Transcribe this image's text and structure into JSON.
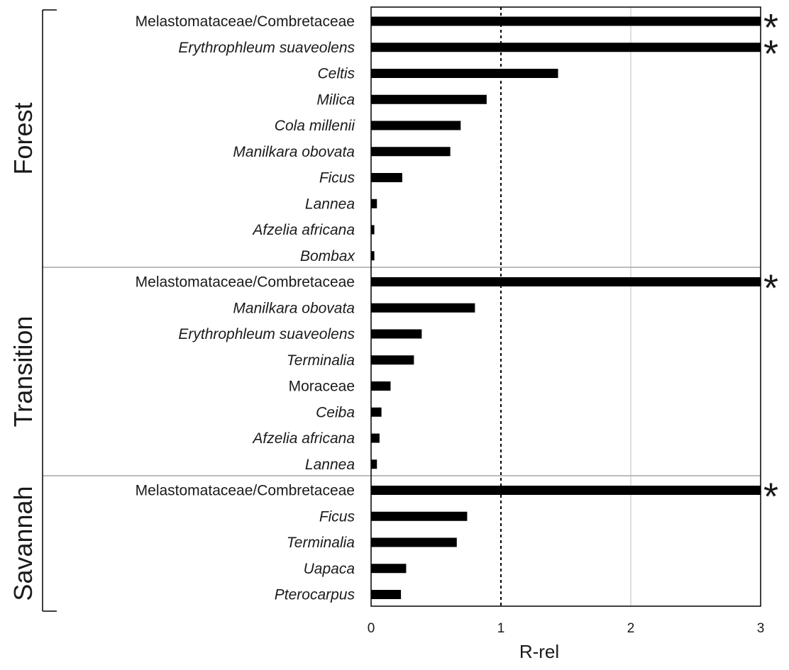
{
  "chart_data": {
    "type": "bar",
    "orientation": "horizontal",
    "xlabel": "R-rel",
    "xlim": [
      0,
      3
    ],
    "xticks": [
      0,
      1,
      2,
      3
    ],
    "reference_line": {
      "x": 1,
      "style": "dashed"
    },
    "grid": {
      "vertical": true,
      "horizontal": false
    },
    "significance_marker": "*",
    "groups": [
      {
        "name": "Forest",
        "items": [
          {
            "label": "Melastomataceae/Combretaceae",
            "italic": false,
            "value": 3.0,
            "significant": true
          },
          {
            "label": "Erythrophleum suaveolens",
            "italic": true,
            "value": 3.0,
            "significant": true
          },
          {
            "label": "Celtis",
            "italic": true,
            "value": 1.44,
            "significant": false
          },
          {
            "label": "Milica",
            "italic": true,
            "value": 0.89,
            "significant": false
          },
          {
            "label": "Cola millenii",
            "italic": true,
            "value": 0.69,
            "significant": false
          },
          {
            "label": "Manilkara obovata",
            "italic": true,
            "value": 0.61,
            "significant": false
          },
          {
            "label": "Ficus",
            "italic": true,
            "value": 0.24,
            "significant": false
          },
          {
            "label": "Lannea",
            "italic": true,
            "value": 0.045,
            "significant": false
          },
          {
            "label": "Afzelia africana",
            "italic": true,
            "value": 0.025,
            "significant": false
          },
          {
            "label": "Bombax",
            "italic": true,
            "value": 0.025,
            "significant": false
          }
        ]
      },
      {
        "name": "Transition",
        "items": [
          {
            "label": "Melastomataceae/Combretaceae",
            "italic": false,
            "value": 3.0,
            "significant": true
          },
          {
            "label": "Manilkara obovata",
            "italic": true,
            "value": 0.8,
            "significant": false
          },
          {
            "label": "Erythrophleum suaveolens",
            "italic": true,
            "value": 0.39,
            "significant": false
          },
          {
            "label": "Terminalia",
            "italic": true,
            "value": 0.33,
            "significant": false
          },
          {
            "label": "Moraceae",
            "italic": false,
            "value": 0.15,
            "significant": false
          },
          {
            "label": "Ceiba",
            "italic": true,
            "value": 0.08,
            "significant": false
          },
          {
            "label": "Afzelia africana",
            "italic": true,
            "value": 0.065,
            "significant": false
          },
          {
            "label": "Lannea",
            "italic": true,
            "value": 0.045,
            "significant": false
          }
        ]
      },
      {
        "name": "Savannah",
        "items": [
          {
            "label": "Melastomataceae/Combretaceae",
            "italic": false,
            "value": 3.0,
            "significant": true
          },
          {
            "label": "Ficus",
            "italic": true,
            "value": 0.74,
            "significant": false
          },
          {
            "label": "Terminalia",
            "italic": true,
            "value": 0.66,
            "significant": false
          },
          {
            "label": "Uapaca",
            "italic": true,
            "value": 0.27,
            "significant": false
          },
          {
            "label": "Pterocarpus",
            "italic": true,
            "value": 0.23,
            "significant": false
          }
        ]
      }
    ],
    "colors": {
      "bar": "#000000",
      "frame": "#000000",
      "divider": "#a6a6a6",
      "grid": "#bfbfbf"
    }
  }
}
